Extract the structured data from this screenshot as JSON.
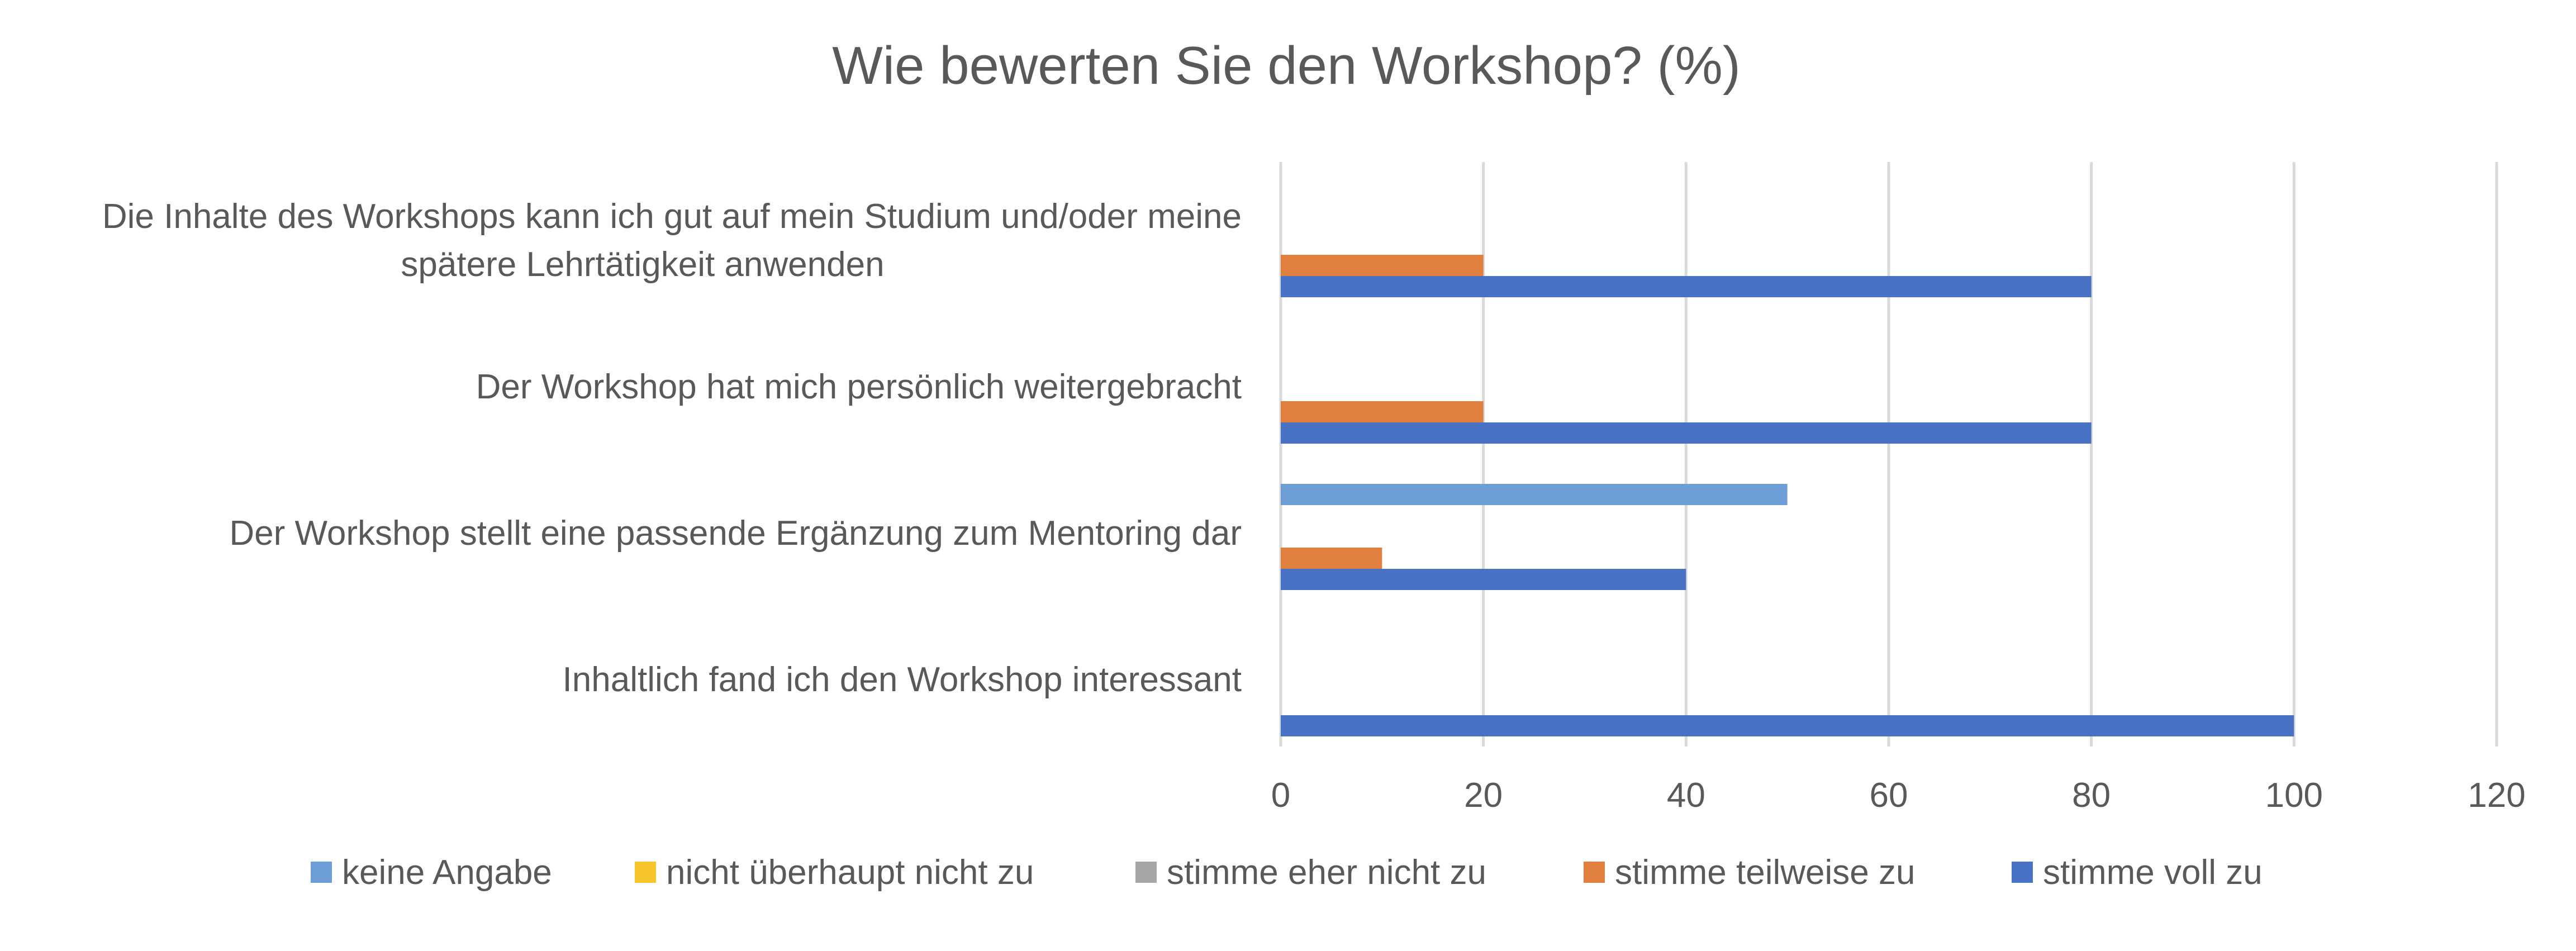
{
  "chart_data": {
    "type": "bar",
    "orientation": "horizontal",
    "title": "Wie bewerten Sie den Workshop? (%)",
    "xlabel": "",
    "ylabel": "",
    "xlim": [
      0,
      120
    ],
    "x_ticks": [
      "0",
      "20",
      "40",
      "60",
      "80",
      "100",
      "120"
    ],
    "grid": "vertical",
    "legend_position": "bottom",
    "categories": [
      [
        "Die Inhalte des Workshops kann ich gut auf mein Studium und/oder meine",
        "spätere Lehrtätigkeit anwenden"
      ],
      [
        "Der Workshop hat mich persönlich weitergebracht"
      ],
      [
        "Der Workshop stellt eine passende Ergänzung zum Mentoring dar"
      ],
      [
        "Inhaltlich fand ich den Workshop interessant"
      ]
    ],
    "series": [
      {
        "name": "keine Angabe",
        "color": "#6d9ed6",
        "values": [
          0,
          0,
          50,
          0
        ]
      },
      {
        "name": "nicht überhaupt nicht zu",
        "color": "#f7c42b",
        "values": [
          0,
          0,
          0,
          0
        ]
      },
      {
        "name": "stimme eher nicht zu",
        "color": "#a5a5a5",
        "values": [
          0,
          0,
          0,
          0
        ]
      },
      {
        "name": "stimme teilweise zu",
        "color": "#e07f3e",
        "values": [
          20,
          20,
          10,
          0
        ]
      },
      {
        "name": "stimme voll zu",
        "color": "#4a72c4",
        "values": [
          80,
          80,
          40,
          100
        ]
      }
    ]
  }
}
